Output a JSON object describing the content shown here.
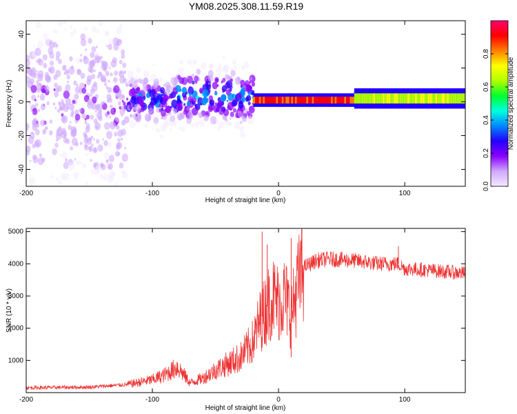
{
  "title": "YM08.2025.308.11.59.R19",
  "chart_data": [
    {
      "type": "heatmap",
      "name": "spectrogram",
      "xlabel": "Height of straight line (km)",
      "ylabel": "Frequency (Hz)",
      "xlim": [
        -200,
        148
      ],
      "ylim": [
        -50,
        48
      ],
      "xticks": [
        -200,
        -100,
        0,
        100
      ],
      "yticks": [
        -40,
        -20,
        0,
        20,
        40
      ],
      "colorbar": {
        "label": "Normalized spectral amplitude",
        "range": [
          0.0,
          1.0
        ],
        "ticks": [
          "0.0",
          "0.2",
          "0.4",
          "0.6",
          "0.8"
        ],
        "colors": [
          "#f4eaff",
          "#cfa8ff",
          "#8a00ff",
          "#2200ff",
          "#0088ff",
          "#00ffe0",
          "#00ff30",
          "#b0ff00",
          "#ffff00",
          "#ff8000",
          "#ff0000",
          "#ff0070"
        ]
      },
      "band_segments": [
        {
          "x": [
            -200,
            -120
          ],
          "center_hz": 0,
          "amplitude": 0.15,
          "spread_hz": 40
        },
        {
          "x": [
            -120,
            -80
          ],
          "center_hz": 1,
          "amplitude": 0.35,
          "spread_hz": 10
        },
        {
          "x": [
            -80,
            -20
          ],
          "center_hz": 3,
          "amplitude": 0.4,
          "spread_hz": 12
        },
        {
          "x": [
            -20,
            60
          ],
          "center_hz": 1,
          "amplitude": 0.95,
          "spread_hz": 2
        },
        {
          "x": [
            60,
            148
          ],
          "center_hz": 2,
          "amplitude": 0.7,
          "spread_hz": 3
        }
      ]
    },
    {
      "type": "line",
      "name": "snr",
      "xlabel": "Height of straight line (km)",
      "ylabel": "SNR (10 * v/v)",
      "xlim": [
        -200,
        148
      ],
      "ylim": [
        0,
        5100
      ],
      "xticks": [
        -200,
        -100,
        0,
        100
      ],
      "yticks": [
        1000,
        2000,
        3000,
        4000,
        5000
      ],
      "color": "#ee3333",
      "trend": {
        "x": [
          -200,
          -150,
          -120,
          -100,
          -90,
          -80,
          -70,
          -60,
          -50,
          -40,
          -30,
          -20,
          -15,
          -10,
          -5,
          0,
          5,
          10,
          15,
          20,
          25,
          30,
          40,
          60,
          80,
          95,
          100,
          120,
          148
        ],
        "y": [
          150,
          170,
          250,
          400,
          550,
          800,
          300,
          450,
          700,
          900,
          1100,
          1600,
          2200,
          2600,
          3000,
          2800,
          3000,
          2400,
          3300,
          3900,
          4000,
          4100,
          4150,
          4100,
          4000,
          4000,
          3850,
          3800,
          3700
        ]
      },
      "spikes": [
        {
          "x": -13,
          "y": 5000
        },
        {
          "x": -9,
          "y": 4600
        },
        {
          "x": 10,
          "y": 4800
        },
        {
          "x": 95,
          "y": 4550
        },
        {
          "x": 10,
          "y": 1100
        }
      ]
    }
  ]
}
